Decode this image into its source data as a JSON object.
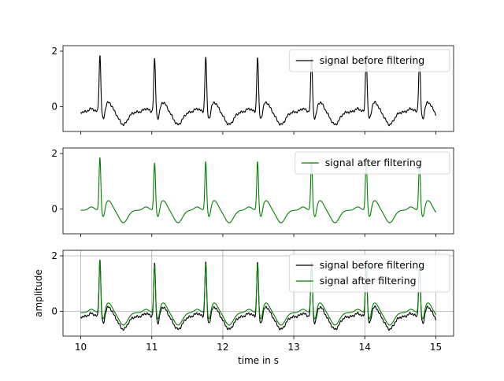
{
  "colors": {
    "before": "#000000",
    "after": "#008000",
    "grid": "#b0b0b0"
  },
  "chart_data": [
    {
      "type": "line",
      "xlim": [
        9.75,
        15.25
      ],
      "ylim": [
        -0.9,
        2.2
      ],
      "yticks": [
        0,
        2
      ],
      "xticks": [
        10,
        11,
        12,
        13,
        14,
        15
      ],
      "show_xtick_labels": false,
      "grid": false,
      "legend_position": "top-right",
      "ylabel": "",
      "xlabel": "",
      "series": [
        {
          "name": "signal before filtering",
          "color": "#000000",
          "beats": [
            10.27,
            11.04,
            11.76,
            12.49,
            13.25,
            14.02,
            14.77
          ],
          "peak": [
            2.0,
            1.85,
            1.95,
            1.95,
            1.95,
            1.95,
            1.9
          ],
          "baseline": -0.2
        }
      ]
    },
    {
      "type": "line",
      "xlim": [
        9.75,
        15.25
      ],
      "ylim": [
        -0.9,
        2.2
      ],
      "yticks": [
        0,
        2
      ],
      "xticks": [
        10,
        11,
        12,
        13,
        14,
        15
      ],
      "show_xtick_labels": false,
      "grid": false,
      "legend_position": "top-right",
      "ylabel": "",
      "xlabel": "",
      "series": [
        {
          "name": "signal after filtering",
          "color": "#008000",
          "beats": [
            10.27,
            11.04,
            11.76,
            12.49,
            13.25,
            14.02,
            14.77
          ],
          "peak": [
            1.9,
            1.7,
            1.75,
            1.75,
            1.75,
            1.75,
            1.7
          ],
          "baseline": -0.05
        }
      ]
    },
    {
      "type": "line",
      "xlim": [
        9.75,
        15.25
      ],
      "ylim": [
        -0.9,
        2.2
      ],
      "yticks": [
        0,
        2
      ],
      "xticks": [
        10,
        11,
        12,
        13,
        14,
        15
      ],
      "show_xtick_labels": true,
      "grid": true,
      "legend_position": "top-right",
      "ylabel": "amplitude",
      "xlabel": "time in s",
      "series": [
        {
          "name": "signal before filtering",
          "color": "#000000",
          "beats": [
            10.27,
            11.04,
            11.76,
            12.49,
            13.25,
            14.02,
            14.77
          ],
          "peak": [
            2.0,
            1.85,
            1.95,
            1.95,
            1.95,
            1.95,
            1.9
          ],
          "baseline": -0.2
        },
        {
          "name": "signal after filtering",
          "color": "#008000",
          "beats": [
            10.27,
            11.04,
            11.76,
            12.49,
            13.25,
            14.02,
            14.77
          ],
          "peak": [
            1.9,
            1.7,
            1.75,
            1.75,
            1.75,
            1.75,
            1.7
          ],
          "baseline": -0.05
        }
      ]
    }
  ]
}
